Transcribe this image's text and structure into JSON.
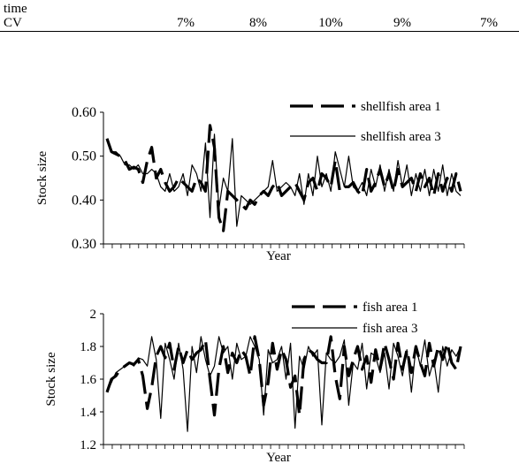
{
  "table": {
    "row1_label": "time",
    "row2_label": "CV",
    "cv_values": [
      "7%",
      "8%",
      "10%",
      "9%",
      "7%"
    ]
  },
  "chart_data": [
    {
      "type": "line",
      "ylabel": "Stock size",
      "xlabel": "Year",
      "ylim": [
        0.3,
        0.6
      ],
      "yticks": [
        "0.30",
        "0.40",
        "0.50",
        "0.60"
      ],
      "yticks_values": [
        0.3,
        0.4,
        0.5,
        0.6
      ],
      "x": [
        1,
        2,
        3,
        4,
        5,
        6,
        7,
        8,
        9,
        10,
        11,
        12,
        13,
        14,
        15,
        16,
        17,
        18,
        19,
        20,
        21,
        22,
        23,
        24,
        25,
        26,
        27,
        28,
        29,
        30,
        31,
        32,
        33,
        34,
        35,
        36,
        37,
        38,
        39,
        40,
        41,
        42,
        43,
        44,
        45,
        46,
        47,
        48,
        49,
        50,
        51,
        52,
        53,
        54,
        55,
        56,
        57,
        58,
        59,
        60,
        61,
        62,
        63,
        64,
        65,
        66,
        67,
        68,
        69,
        70,
        71,
        72,
        73,
        74,
        75,
        76,
        77,
        78,
        79,
        80
      ],
      "series": [
        {
          "name": "shellfish area 1",
          "style": "dashed-thick",
          "values": [
            0.54,
            0.51,
            0.505,
            0.5,
            0.49,
            0.47,
            0.475,
            0.47,
            0.44,
            0.49,
            0.52,
            0.45,
            0.47,
            0.44,
            0.42,
            0.43,
            0.45,
            0.44,
            0.43,
            0.42,
            0.45,
            0.44,
            0.42,
            0.57,
            0.52,
            0.36,
            0.33,
            0.42,
            0.41,
            0.4,
            0.39,
            0.38,
            0.4,
            0.39,
            0.41,
            0.42,
            0.41,
            0.43,
            0.44,
            0.41,
            0.42,
            0.43,
            0.44,
            0.42,
            0.4,
            0.44,
            0.45,
            0.42,
            0.46,
            0.45,
            0.43,
            0.49,
            0.42,
            0.43,
            0.43,
            0.44,
            0.42,
            0.41,
            0.47,
            0.42,
            0.44,
            0.47,
            0.43,
            0.46,
            0.42,
            0.47,
            0.43,
            0.44,
            0.45,
            0.42,
            0.46,
            0.43,
            0.45,
            0.41,
            0.46,
            0.42,
            0.45,
            0.42,
            0.46,
            0.42
          ]
        },
        {
          "name": "shellfish area 3",
          "style": "solid-thin",
          "values": [
            0.54,
            0.51,
            0.51,
            0.5,
            0.48,
            0.48,
            0.47,
            0.48,
            0.46,
            0.46,
            0.47,
            0.46,
            0.43,
            0.42,
            0.46,
            0.42,
            0.43,
            0.46,
            0.41,
            0.48,
            0.46,
            0.42,
            0.53,
            0.36,
            0.55,
            0.38,
            0.45,
            0.42,
            0.54,
            0.34,
            0.41,
            0.4,
            0.39,
            0.4,
            0.41,
            0.42,
            0.43,
            0.49,
            0.42,
            0.43,
            0.44,
            0.43,
            0.41,
            0.46,
            0.39,
            0.46,
            0.41,
            0.5,
            0.43,
            0.46,
            0.42,
            0.51,
            0.47,
            0.43,
            0.5,
            0.43,
            0.42,
            0.44,
            0.41,
            0.47,
            0.43,
            0.48,
            0.42,
            0.47,
            0.42,
            0.49,
            0.43,
            0.48,
            0.41,
            0.46,
            0.42,
            0.47,
            0.41,
            0.47,
            0.42,
            0.48,
            0.41,
            0.46,
            0.42,
            0.41
          ]
        }
      ]
    },
    {
      "type": "line",
      "ylabel": "Stock size",
      "xlabel": "Year",
      "ylim": [
        1.2,
        2.0
      ],
      "yticks": [
        "1.2",
        "1.4",
        "1.6",
        "1.8",
        "2"
      ],
      "yticks_values": [
        1.2,
        1.4,
        1.6,
        1.8,
        2.0
      ],
      "x": [
        1,
        2,
        3,
        4,
        5,
        6,
        7,
        8,
        9,
        10,
        11,
        12,
        13,
        14,
        15,
        16,
        17,
        18,
        19,
        20,
        21,
        22,
        23,
        24,
        25,
        26,
        27,
        28,
        29,
        30,
        31,
        32,
        33,
        34,
        35,
        36,
        37,
        38,
        39,
        40,
        41,
        42,
        43,
        44,
        45,
        46,
        47,
        48,
        49,
        50,
        51,
        52,
        53,
        54,
        55,
        56,
        57,
        58,
        59,
        60,
        61,
        62,
        63,
        64,
        65,
        66,
        67,
        68,
        69,
        70,
        71,
        72,
        73,
        74,
        75,
        76,
        77,
        78,
        79,
        80
      ],
      "series": [
        {
          "name": "fish area 1",
          "style": "dashed-thick",
          "values": [
            1.52,
            1.6,
            1.62,
            1.66,
            1.68,
            1.7,
            1.69,
            1.72,
            1.62,
            1.42,
            1.55,
            1.74,
            1.8,
            1.73,
            1.82,
            1.66,
            1.8,
            1.7,
            1.78,
            1.72,
            1.76,
            1.78,
            1.84,
            1.6,
            1.38,
            1.66,
            1.8,
            1.64,
            1.76,
            1.7,
            1.78,
            1.74,
            1.62,
            1.86,
            1.72,
            1.44,
            1.58,
            1.82,
            1.66,
            1.78,
            1.72,
            1.55,
            1.62,
            1.38,
            1.72,
            1.78,
            1.76,
            1.72,
            1.7,
            1.7,
            1.86,
            1.62,
            1.48,
            1.8,
            1.62,
            1.72,
            1.8,
            1.66,
            1.74,
            1.58,
            1.78,
            1.66,
            1.82,
            1.72,
            1.6,
            1.82,
            1.66,
            1.78,
            1.64,
            1.8,
            1.7,
            1.62,
            1.82,
            1.68,
            1.8,
            1.72,
            1.82,
            1.7,
            1.66,
            1.8
          ]
        },
        {
          "name": "fish area 3",
          "style": "solid-thin",
          "values": [
            1.52,
            1.58,
            1.64,
            1.66,
            1.68,
            1.7,
            1.68,
            1.73,
            1.72,
            1.68,
            1.86,
            1.72,
            1.36,
            1.82,
            1.72,
            1.6,
            1.82,
            1.66,
            1.28,
            1.8,
            1.64,
            1.86,
            1.72,
            1.62,
            1.68,
            1.86,
            1.76,
            1.8,
            1.6,
            1.82,
            1.72,
            1.74,
            1.86,
            1.8,
            1.72,
            1.38,
            1.78,
            1.7,
            1.72,
            1.8,
            1.6,
            1.82,
            1.3,
            1.74,
            1.66,
            1.8,
            1.74,
            1.78,
            1.32,
            1.76,
            1.72,
            1.7,
            1.74,
            1.84,
            1.44,
            1.7,
            1.66,
            1.82,
            1.54,
            1.76,
            1.74,
            1.64,
            1.76,
            1.54,
            1.82,
            1.74,
            1.62,
            1.78,
            1.52,
            1.8,
            1.68,
            1.84,
            1.62,
            1.72,
            1.52,
            1.8,
            1.68,
            1.78,
            1.74,
            1.8
          ]
        }
      ]
    }
  ]
}
